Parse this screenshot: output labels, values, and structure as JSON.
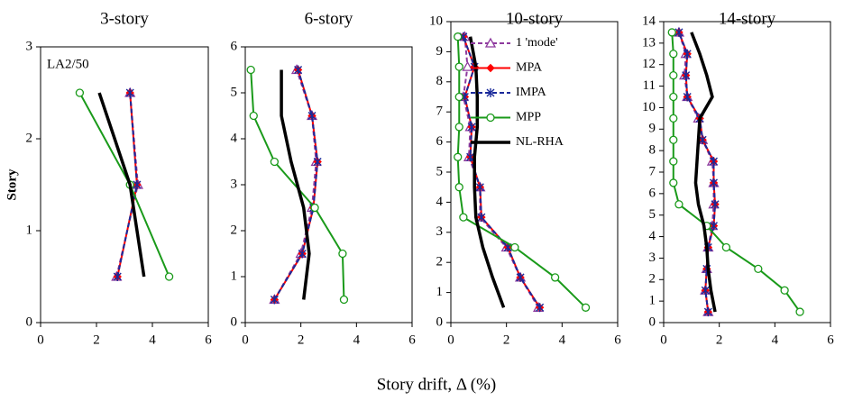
{
  "xlabel": "Story drift, Δ (%)",
  "ylabel": "Story",
  "chart_data": [
    {
      "type": "line",
      "title": "3-story",
      "annotation": "LA2/50",
      "xlim": [
        0,
        6
      ],
      "xticks": [
        0,
        2,
        4,
        6
      ],
      "ylim": [
        0,
        3
      ],
      "yticks": [
        0,
        1,
        2,
        3
      ],
      "y": [
        0.5,
        1.5,
        2.5
      ],
      "series": [
        {
          "name": "1 'mode'",
          "color": "#8e3a9e",
          "dash": true,
          "marker": "triangle",
          "values": [
            2.72,
            3.48,
            3.2
          ]
        },
        {
          "name": "MPA",
          "color": "#ff0000",
          "dash": false,
          "marker": "diamond",
          "values": [
            2.75,
            3.45,
            3.2
          ]
        },
        {
          "name": "IMPA",
          "color": "#1a2a9a",
          "dash": true,
          "marker": "asterisk",
          "values": [
            2.75,
            3.45,
            3.2
          ]
        },
        {
          "name": "MPP",
          "color": "#1a9a1a",
          "dash": false,
          "marker": "circle",
          "values": [
            4.6,
            3.2,
            1.4
          ]
        },
        {
          "name": "NL-RHA",
          "color": "#000000",
          "dash": false,
          "marker": "none",
          "values": [
            3.7,
            3.2,
            2.1
          ]
        }
      ]
    },
    {
      "type": "line",
      "title": "6-story",
      "xlim": [
        0,
        6
      ],
      "xticks": [
        0,
        2,
        4,
        6
      ],
      "ylim": [
        0,
        6
      ],
      "yticks": [
        0,
        1,
        2,
        3,
        4,
        5,
        6
      ],
      "y": [
        0.5,
        1.5,
        2.5,
        3.5,
        4.5,
        5.5
      ],
      "series": [
        {
          "name": "1 'mode'",
          "color": "#8e3a9e",
          "dash": true,
          "marker": "triangle",
          "values": [
            1.05,
            2.0,
            2.4,
            2.55,
            2.4,
            1.85
          ]
        },
        {
          "name": "MPA",
          "color": "#ff0000",
          "dash": false,
          "marker": "diamond",
          "values": [
            1.05,
            2.05,
            2.45,
            2.6,
            2.4,
            1.9
          ]
        },
        {
          "name": "IMPA",
          "color": "#1a2a9a",
          "dash": true,
          "marker": "asterisk",
          "values": [
            1.05,
            2.05,
            2.45,
            2.6,
            2.4,
            1.9
          ]
        },
        {
          "name": "MPP",
          "color": "#1a9a1a",
          "dash": false,
          "marker": "circle",
          "values": [
            3.55,
            3.5,
            2.5,
            1.05,
            0.3,
            0.2
          ]
        },
        {
          "name": "NL-RHA",
          "color": "#000000",
          "dash": false,
          "marker": "none",
          "values": [
            2.1,
            2.3,
            2.1,
            1.65,
            1.3,
            1.3
          ]
        }
      ]
    },
    {
      "type": "line",
      "title": "10-story",
      "legend": "upper right",
      "xlim": [
        0,
        6
      ],
      "xticks": [
        0,
        2,
        4,
        6
      ],
      "ylim": [
        0,
        10
      ],
      "yticks": [
        0,
        1,
        2,
        3,
        4,
        5,
        6,
        7,
        8,
        9,
        10
      ],
      "y": [
        0.5,
        1.5,
        2.5,
        3.5,
        4.5,
        5.5,
        6.5,
        7.5,
        8.5,
        9.5
      ],
      "series": [
        {
          "name": "1 'mode'",
          "color": "#8e3a9e",
          "dash": true,
          "marker": "triangle",
          "values": [
            3.15,
            2.5,
            2.0,
            1.05,
            1.05,
            0.65,
            0.7,
            0.45,
            0.6,
            0.5
          ]
        },
        {
          "name": "MPA",
          "color": "#ff0000",
          "dash": false,
          "marker": "diamond",
          "values": [
            3.2,
            2.5,
            2.05,
            1.1,
            1.05,
            0.7,
            0.75,
            0.5,
            0.85,
            0.45
          ]
        },
        {
          "name": "IMPA",
          "color": "#1a2a9a",
          "dash": true,
          "marker": "asterisk",
          "values": [
            3.2,
            2.5,
            2.05,
            1.1,
            1.05,
            0.7,
            0.75,
            0.5,
            0.85,
            0.45
          ]
        },
        {
          "name": "MPP",
          "color": "#1a9a1a",
          "dash": false,
          "marker": "circle",
          "values": [
            4.85,
            3.75,
            2.3,
            0.45,
            0.3,
            0.25,
            0.3,
            0.3,
            0.3,
            0.25
          ]
        },
        {
          "name": "NL-RHA",
          "color": "#000000",
          "dash": false,
          "marker": "none",
          "values": [
            1.9,
            1.5,
            1.15,
            0.9,
            0.85,
            0.85,
            0.95,
            0.95,
            0.9,
            0.7
          ]
        }
      ]
    },
    {
      "type": "line",
      "title": "14-story",
      "xlim": [
        0,
        6
      ],
      "xticks": [
        0,
        2,
        4,
        6
      ],
      "ylim": [
        0,
        14
      ],
      "yticks": [
        0,
        1,
        2,
        3,
        4,
        5,
        6,
        7,
        8,
        9,
        10,
        11,
        12,
        13,
        14
      ],
      "y": [
        0.5,
        1.5,
        2.5,
        3.5,
        4.5,
        5.5,
        6.5,
        7.5,
        8.5,
        9.5,
        10.5,
        11.5,
        12.5,
        13.5
      ],
      "series": [
        {
          "name": "1 'mode'",
          "color": "#8e3a9e",
          "dash": true,
          "marker": "triangle",
          "values": [
            1.6,
            1.5,
            1.55,
            1.6,
            1.75,
            1.8,
            1.8,
            1.75,
            1.4,
            1.25,
            0.85,
            0.75,
            0.8,
            0.55
          ]
        },
        {
          "name": "MPA",
          "color": "#ff0000",
          "dash": false,
          "marker": "diamond",
          "values": [
            1.6,
            1.5,
            1.55,
            1.6,
            1.8,
            1.85,
            1.8,
            1.8,
            1.4,
            1.3,
            0.85,
            0.8,
            0.85,
            0.55
          ]
        },
        {
          "name": "IMPA",
          "color": "#1a2a9a",
          "dash": true,
          "marker": "asterisk",
          "values": [
            1.6,
            1.5,
            1.55,
            1.6,
            1.8,
            1.85,
            1.8,
            1.8,
            1.4,
            1.3,
            0.85,
            0.8,
            0.85,
            0.55
          ]
        },
        {
          "name": "MPP",
          "color": "#1a9a1a",
          "dash": false,
          "marker": "circle",
          "values": [
            4.9,
            4.35,
            3.4,
            2.25,
            1.55,
            0.55,
            0.35,
            0.35,
            0.35,
            0.35,
            0.35,
            0.35,
            0.35,
            0.3
          ]
        },
        {
          "name": "NL-RHA",
          "color": "#000000",
          "dash": false,
          "marker": "none",
          "values": [
            1.85,
            1.7,
            1.6,
            1.55,
            1.45,
            1.25,
            1.15,
            1.2,
            1.25,
            1.3,
            1.75,
            1.55,
            1.3,
            1.0
          ]
        }
      ]
    }
  ]
}
